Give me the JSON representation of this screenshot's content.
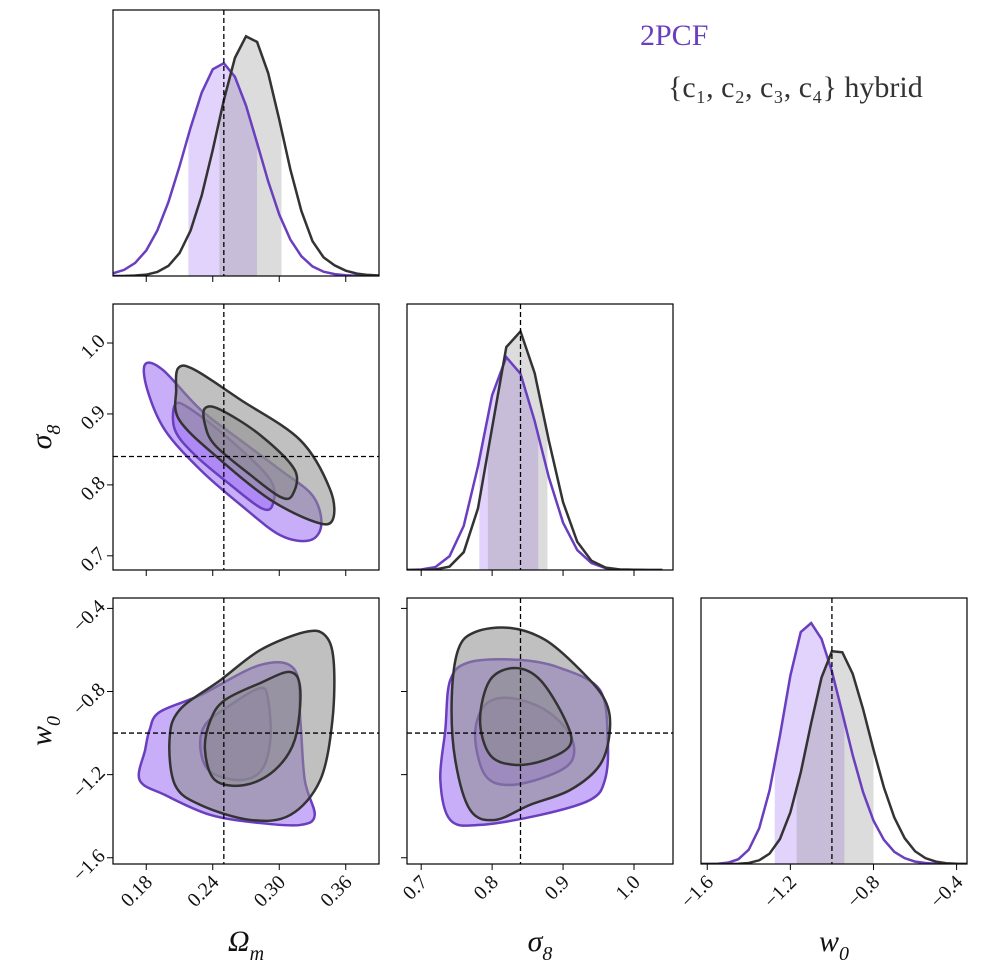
{
  "chart_data": {
    "type": "corner",
    "params": [
      {
        "label": "Ω",
        "subscript": "m",
        "truth": 0.25,
        "lim": [
          0.15,
          0.39
        ],
        "ticks": [
          0.18,
          0.24,
          {
            "value": 0.3,
            "label": "0.30"
          },
          0.36
        ],
        "density_x": [
          0.15,
          0.16,
          0.17,
          0.18,
          0.19,
          0.2,
          0.21,
          0.22,
          0.23,
          0.24,
          0.25,
          0.26,
          0.27,
          0.28,
          0.29,
          0.3,
          0.31,
          0.32,
          0.33,
          0.34,
          0.35,
          0.36,
          0.37,
          0.38,
          0.39
        ]
      },
      {
        "label": "σ",
        "subscript": "8",
        "truth": 0.84,
        "lim": [
          0.68,
          1.055
        ],
        "ticks": [
          0.7,
          0.8,
          0.9,
          {
            "value": 1,
            "label": "1.0"
          }
        ],
        "density_x": [
          0.68,
          0.7,
          0.72,
          0.74,
          0.76,
          0.78,
          0.8,
          0.82,
          0.84,
          0.86,
          0.88,
          0.9,
          0.92,
          0.94,
          0.96,
          0.98,
          1.0,
          1.02,
          1.04
        ]
      },
      {
        "label": "w",
        "subscript": "0",
        "truth": -1,
        "lim": [
          -1.63,
          -0.35
        ],
        "ticks": [
          {
            "value": -1.6,
            "label": "−1.6"
          },
          {
            "value": -1.2,
            "label": "−1.2"
          },
          {
            "value": -0.8,
            "label": "−0.8"
          },
          {
            "value": -0.4,
            "label": "−0.4"
          }
        ],
        "density_x": [
          -1.65,
          -1.6,
          -1.55,
          -1.5,
          -1.45,
          -1.4,
          -1.35,
          -1.3,
          -1.25,
          -1.2,
          -1.15,
          -1.1,
          -1.05,
          -1.0,
          -0.95,
          -0.9,
          -0.85,
          -0.8,
          -0.75,
          -0.7,
          -0.65,
          -0.6,
          -0.55,
          -0.5,
          -0.45,
          -0.4,
          -0.35
        ]
      }
    ],
    "series": [
      {
        "name": "2PCF",
        "color": "#6a3fbf",
        "fill_color": "#9a6cf2",
        "marginals": [
          {
            "density": [
              0.01,
              0.023,
              0.049,
              0.096,
              0.171,
              0.278,
              0.412,
              0.558,
              0.689,
              0.777,
              0.8,
              0.749,
              0.641,
              0.5,
              0.356,
              0.231,
              0.137,
              0.074,
              0.036,
              0.016,
              0.007,
              0.003,
              0.001,
              0,
              0
            ],
            "band": [
              0.218,
              0.28
            ]
          },
          {
            "density": [
              0,
              0.002,
              0.011,
              0.052,
              0.166,
              0.389,
              0.657,
              0.8,
              0.738,
              0.56,
              0.348,
              0.178,
              0.075,
              0.026,
              0.007,
              0.002,
              0.001,
              0,
              0
            ],
            "band": [
              0.782,
              0.865
            ]
          },
          {
            "density": [
              0,
              0,
              0.001,
              0.005,
              0.018,
              0.054,
              0.134,
              0.277,
              0.483,
              0.708,
              0.872,
              0.906,
              0.846,
              0.724,
              0.568,
              0.409,
              0.27,
              0.163,
              0.091,
              0.046,
              0.022,
              0.009,
              0.004,
              0.001,
              0,
              0,
              0
            ],
            "band": [
              -1.275,
              -0.94
            ]
          }
        ],
        "contours": [
          {
            "params": [
              0,
              1
            ],
            "levels": [
              {
                "x": [
                  0.179,
                  0.195,
                  0.229,
                  0.265,
                  0.301,
                  0.33,
                  0.338,
                  0.328,
                  0.301,
                  0.265,
                  0.229,
                  0.197,
                  0.181
                ],
                "y": [
                  0.97,
                  0.962,
                  0.906,
                  0.863,
                  0.821,
                  0.785,
                  0.745,
                  0.722,
                  0.729,
                  0.772,
                  0.821,
                  0.877,
                  0.934
                ]
              },
              {
                "x": [
                  0.206,
                  0.219,
                  0.256,
                  0.292,
                  0.294,
                  0.284,
                  0.256,
                  0.224,
                  0.206
                ],
                "y": [
                  0.913,
                  0.908,
                  0.863,
                  0.807,
                  0.772,
                  0.767,
                  0.8,
                  0.842,
                  0.877
                ]
              }
            ]
          },
          {
            "params": [
              0,
              2
            ],
            "levels": [
              {
                "x": [
                  0.183,
                  0.192,
                  0.229,
                  0.283,
                  0.314,
                  0.319,
                  0.323,
                  0.332,
                  0.319,
                  0.283,
                  0.238,
                  0.197,
                  0.174,
                  0.179
                ],
                "y": [
                  -0.985,
                  -0.899,
                  -0.817,
                  -0.672,
                  -0.696,
                  -0.937,
                  -1.226,
                  -1.394,
                  -1.442,
                  -1.433,
                  -1.394,
                  -1.298,
                  -1.226,
                  -1.081
                ]
              },
              {
                "x": [
                  0.233,
                  0.256,
                  0.283,
                  0.29,
                  0.292,
                  0.284,
                  0.265,
                  0.238,
                  0.229
                ],
                "y": [
                  -0.961,
                  -0.865,
                  -0.783,
                  -0.841,
                  -1.033,
                  -1.178,
                  -1.226,
                  -1.187,
                  -1.081
                ]
              }
            ]
          },
          {
            "params": [
              1,
              2
            ],
            "levels": [
              {
                "x": [
                  0.741,
                  0.769,
                  0.839,
                  0.896,
                  0.952,
                  0.963,
                  0.959,
                  0.938,
                  0.868,
                  0.783,
                  0.741,
                  0.727,
                  0.734
                ],
                "y": [
                  -0.745,
                  -0.658,
                  -0.648,
                  -0.687,
                  -0.793,
                  -1.033,
                  -1.226,
                  -1.322,
                  -1.394,
                  -1.442,
                  -1.418,
                  -1.226,
                  -0.985
                ]
              },
              {
                "x": [
                  0.776,
                  0.79,
                  0.825,
                  0.875,
                  0.91,
                  0.913,
                  0.882,
                  0.825,
                  0.79
                ],
                "y": [
                  -1.009,
                  -0.865,
                  -0.831,
                  -0.889,
                  -1.009,
                  -1.129,
                  -1.202,
                  -1.25,
                  -1.202
                ]
              }
            ]
          }
        ]
      },
      {
        "name": "{c₁, c₂, c₃, c₄} hybrid",
        "color": "#333333",
        "fill_color": "#8c8c8c",
        "marginals": [
          {
            "density": [
              0,
              0,
              0.002,
              0.005,
              0.015,
              0.038,
              0.086,
              0.171,
              0.302,
              0.474,
              0.661,
              0.82,
              0.901,
              0.88,
              0.763,
              0.588,
              0.401,
              0.244,
              0.131,
              0.07,
              0.04,
              0.02,
              0.009,
              0.004,
              0.002
            ],
            "band": [
              0.246,
              0.302
            ]
          },
          {
            "density": [
              0,
              0,
              0.002,
              0.013,
              0.067,
              0.231,
              0.535,
              0.838,
              0.897,
              0.74,
              0.486,
              0.255,
              0.106,
              0.035,
              0.009,
              0.002,
              0.001,
              0,
              0
            ],
            "band": [
              0.794,
              0.878
            ]
          },
          {
            "density": [
              0,
              0,
              0,
              0,
              0.001,
              0.004,
              0.014,
              0.039,
              0.094,
              0.194,
              0.344,
              0.529,
              0.701,
              0.8,
              0.796,
              0.715,
              0.582,
              0.43,
              0.288,
              0.175,
              0.097,
              0.048,
              0.022,
              0.009,
              0.003,
              0.001,
              0
            ],
            "band": [
              -1.17,
              -0.8
            ]
          }
        ],
        "contours": [
          {
            "params": [
              0,
              1
            ],
            "levels": [
              {
                "x": [
                  0.209,
                  0.224,
                  0.265,
                  0.319,
                  0.346,
                  0.348,
                  0.332,
                  0.292,
                  0.247,
                  0.21,
                  0.207
                ],
                "y": [
                  0.965,
                  0.962,
                  0.92,
                  0.863,
                  0.793,
                  0.75,
                  0.748,
                  0.779,
                  0.835,
                  0.891,
                  0.934
                ]
              },
              {
                "x": [
                  0.233,
                  0.247,
                  0.283,
                  0.314,
                  0.312,
                  0.301,
                  0.274,
                  0.242,
                  0.233
                ],
                "y": [
                  0.908,
                  0.906,
                  0.87,
                  0.821,
                  0.786,
                  0.783,
                  0.814,
                  0.856,
                  0.885
                ]
              }
            ]
          },
          {
            "params": [
              0,
              2
            ],
            "levels": [
              {
                "x": [
                  0.201,
                  0.21,
                  0.247,
                  0.283,
                  0.323,
                  0.341,
                  0.349,
                  0.348,
                  0.337,
                  0.31,
                  0.274,
                  0.229,
                  0.206
                ],
                "y": [
                  -1.033,
                  -0.889,
                  -0.745,
                  -0.6,
                  -0.514,
                  -0.528,
                  -0.648,
                  -0.937,
                  -1.226,
                  -1.394,
                  -1.418,
                  -1.346,
                  -1.25
                ]
              },
              {
                "x": [
                  0.251,
                  0.283,
                  0.31,
                  0.319,
                  0.314,
                  0.296,
                  0.269,
                  0.242,
                  0.233,
                  0.238
                ],
                "y": [
                  -0.841,
                  -0.759,
                  -0.706,
                  -0.793,
                  -1.033,
                  -1.178,
                  -1.25,
                  -1.226,
                  -1.081,
                  -0.937
                ]
              }
            ]
          },
          {
            "params": [
              1,
              2
            ],
            "levels": [
              {
                "x": [
                  0.752,
                  0.776,
                  0.825,
                  0.875,
                  0.924,
                  0.959,
                  0.966,
                  0.952,
                  0.91,
                  0.853,
                  0.804,
                  0.769,
                  0.748,
                  0.743
                ],
                "y": [
                  -0.6,
                  -0.514,
                  -0.494,
                  -0.552,
                  -0.696,
                  -0.841,
                  -0.985,
                  -1.153,
                  -1.274,
                  -1.346,
                  -1.418,
                  -1.37,
                  -1.129,
                  -0.841
                ]
              },
              {
                "x": [
                  0.783,
                  0.797,
                  0.832,
                  0.868,
                  0.903,
                  0.91,
                  0.875,
                  0.832,
                  0.797
                ],
                "y": [
                  -0.937,
                  -0.745,
                  -0.687,
                  -0.745,
                  -0.937,
                  -1.057,
                  -1.129,
                  -1.153,
                  -1.105
                ]
              }
            ]
          }
        ]
      }
    ]
  }
}
